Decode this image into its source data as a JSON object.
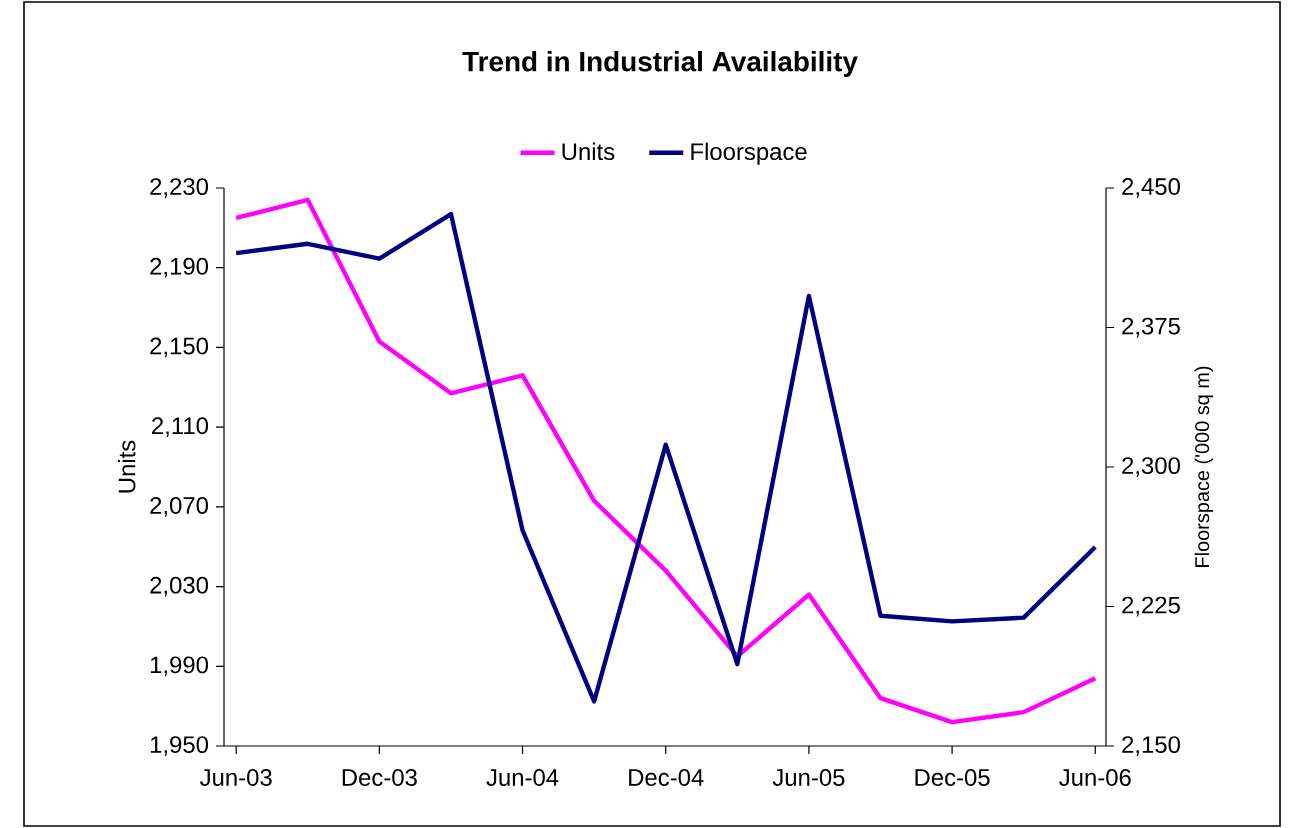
{
  "chart_data": {
    "type": "line",
    "title": "Trend in Industrial Availability",
    "ylabel": "Units",
    "y2label": "Floorspace ('000 sq m)",
    "categories": [
      "Jun-03",
      null,
      "Dec-03",
      null,
      "Jun-04",
      null,
      "Dec-04",
      null,
      "Jun-05",
      null,
      "Dec-05",
      null,
      "Jun-06"
    ],
    "series": [
      {
        "name": "Units",
        "color": "#ff00ff",
        "values": [
          2215,
          2224,
          2153,
          2127,
          2136,
          2073,
          2038,
          1995,
          2026,
          1974,
          1962,
          1967,
          1984
        ]
      },
      {
        "name": "Floorspace",
        "color": "#000080",
        "axis": "y2",
        "values": [
          2415,
          2420,
          2412,
          2436,
          2266,
          2174,
          2312,
          2194,
          2392,
          2220,
          2217,
          2219,
          2257
        ]
      }
    ],
    "ylim": [
      1950,
      2230
    ],
    "yticks": [
      {
        "value": 1950,
        "label": "1,950"
      },
      {
        "value": 1990,
        "label": "1,990"
      },
      {
        "value": 2030,
        "label": "2,030"
      },
      {
        "value": 2070,
        "label": "2,070"
      },
      {
        "value": 2110,
        "label": "2,110"
      },
      {
        "value": 2150,
        "label": "2,150"
      },
      {
        "value": 2190,
        "label": "2,190"
      },
      {
        "value": 2230,
        "label": "2,230"
      }
    ],
    "y2lim": [
      2150,
      2450
    ],
    "y2ticks": [
      {
        "value": 2150,
        "label": "2,150"
      },
      {
        "value": 2225,
        "label": "2,225"
      },
      {
        "value": 2300,
        "label": "2,300"
      },
      {
        "value": 2375,
        "label": "2,375"
      },
      {
        "value": 2450,
        "label": "2,450"
      }
    ],
    "legend": "top",
    "marker": "none",
    "grid": false
  }
}
